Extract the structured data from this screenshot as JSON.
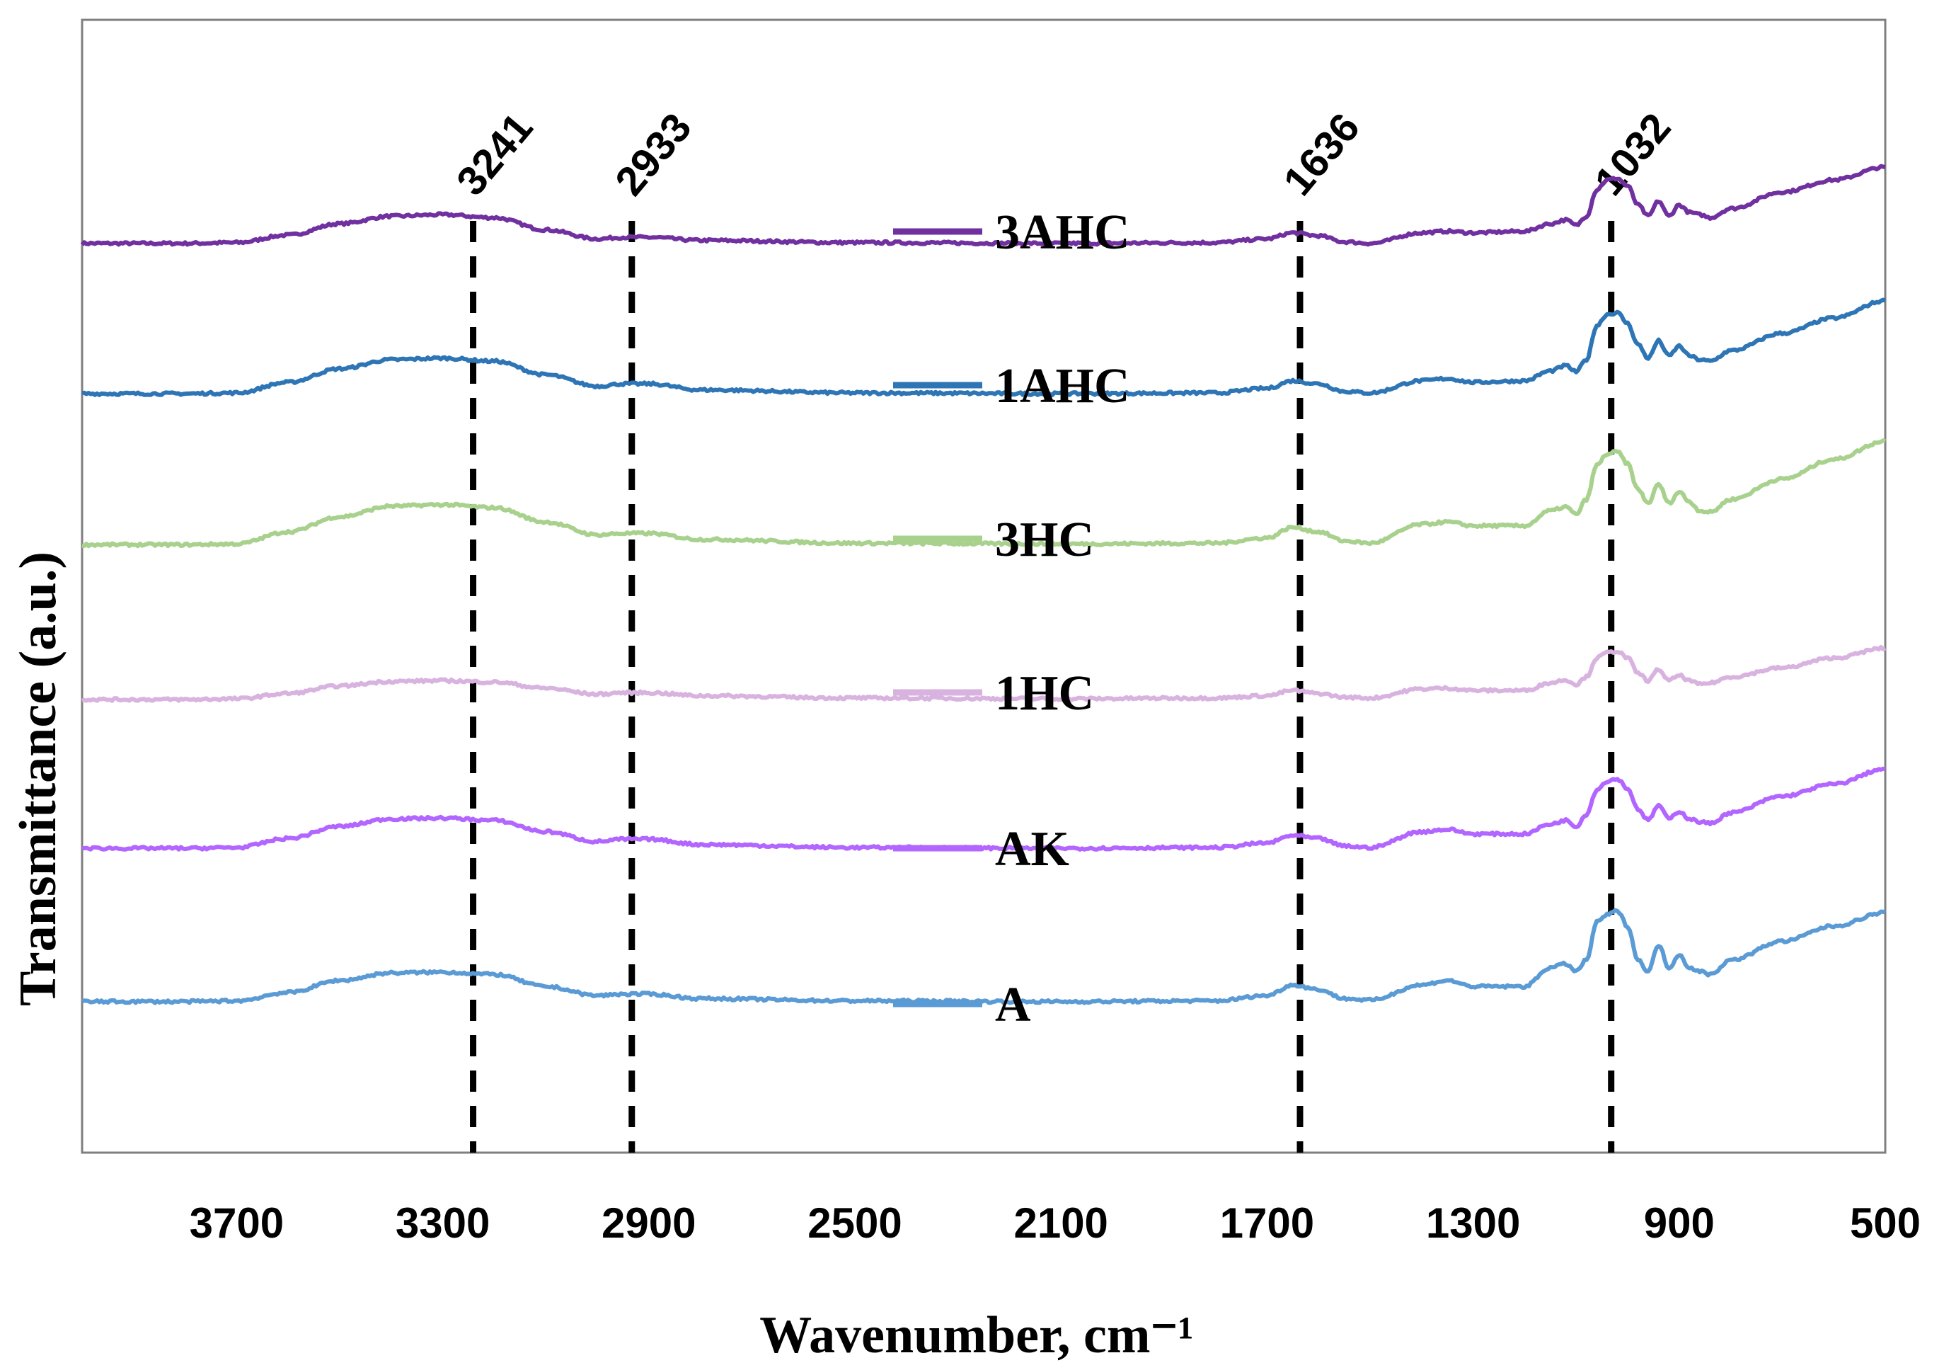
{
  "chart_data": {
    "type": "line",
    "title": "",
    "xlabel": "Wavenumber, cm⁻¹",
    "ylabel": "Transmittance (a.u.)",
    "xlim": [
      4000,
      500
    ],
    "x_reversed": true,
    "ylim": [
      0,
      15
    ],
    "y_ticks_shown": false,
    "x_ticks": [
      3700,
      3300,
      2900,
      2500,
      2100,
      1700,
      1300,
      900,
      500
    ],
    "x_tick_labels": [
      "3700",
      "3300",
      "2900",
      "2500",
      "2100",
      "1700",
      "1300",
      "900",
      "500"
    ],
    "grid": false,
    "legend_position": "center",
    "peak_markers": [
      {
        "x": 3241,
        "label": "3241"
      },
      {
        "x": 2933,
        "label": "2933"
      },
      {
        "x": 1636,
        "label": "1636"
      },
      {
        "x": 1032,
        "label": "1032"
      }
    ],
    "x_samples": [
      4000,
      3900,
      3800,
      3700,
      3600,
      3500,
      3400,
      3300,
      3200,
      3100,
      3000,
      2950,
      2900,
      2800,
      2500,
      2100,
      1800,
      1700,
      1650,
      1600,
      1550,
      1500,
      1400,
      1350,
      1300,
      1200,
      1150,
      1120,
      1100,
      1080,
      1060,
      1040,
      1020,
      1000,
      980,
      960,
      940,
      920,
      900,
      880,
      860,
      840,
      800,
      700,
      600,
      500
    ],
    "series": [
      {
        "name": "3AHC",
        "color": "#7030A0",
        "values": [
          12.04,
          12.04,
          12.04,
          12.05,
          12.15,
          12.3,
          12.4,
          12.42,
          12.38,
          12.22,
          12.1,
          12.12,
          12.12,
          12.08,
          12.05,
          12.04,
          12.05,
          12.1,
          12.18,
          12.14,
          12.06,
          12.04,
          12.18,
          12.2,
          12.18,
          12.2,
          12.3,
          12.35,
          12.28,
          12.4,
          12.75,
          12.88,
          12.9,
          12.8,
          12.55,
          12.4,
          12.6,
          12.4,
          12.55,
          12.45,
          12.42,
          12.38,
          12.5,
          12.72,
          12.88,
          13.05
        ]
      },
      {
        "name": "1AHC",
        "color": "#2E75B6",
        "values": [
          10.05,
          10.05,
          10.05,
          10.06,
          10.2,
          10.38,
          10.5,
          10.52,
          10.48,
          10.3,
          10.15,
          10.18,
          10.18,
          10.1,
          10.06,
          10.05,
          10.06,
          10.12,
          10.22,
          10.18,
          10.08,
          10.06,
          10.22,
          10.25,
          10.2,
          10.22,
          10.35,
          10.42,
          10.34,
          10.5,
          10.95,
          11.1,
          11.12,
          10.98,
          10.7,
          10.52,
          10.75,
          10.55,
          10.68,
          10.55,
          10.5,
          10.48,
          10.62,
          10.85,
          11.05,
          11.28
        ]
      },
      {
        "name": "3HC",
        "color": "#A9D18E",
        "values": [
          8.05,
          8.05,
          8.05,
          8.06,
          8.22,
          8.42,
          8.56,
          8.58,
          8.54,
          8.35,
          8.18,
          8.2,
          8.2,
          8.12,
          8.07,
          8.06,
          8.07,
          8.14,
          8.28,
          8.22,
          8.1,
          8.07,
          8.32,
          8.35,
          8.3,
          8.3,
          8.5,
          8.55,
          8.45,
          8.65,
          9.1,
          9.25,
          9.28,
          9.12,
          8.78,
          8.6,
          8.85,
          8.6,
          8.75,
          8.62,
          8.5,
          8.48,
          8.65,
          8.92,
          9.18,
          9.42
        ]
      },
      {
        "name": "1HC",
        "color": "#D9B3E0",
        "values": [
          6.0,
          6.0,
          6.0,
          6.01,
          6.08,
          6.18,
          6.24,
          6.25,
          6.23,
          6.15,
          6.07,
          6.09,
          6.09,
          6.05,
          6.02,
          6.01,
          6.02,
          6.05,
          6.12,
          6.08,
          6.03,
          6.02,
          6.14,
          6.15,
          6.12,
          6.12,
          6.22,
          6.26,
          6.2,
          6.3,
          6.55,
          6.62,
          6.64,
          6.55,
          6.35,
          6.25,
          6.4,
          6.25,
          6.32,
          6.25,
          6.2,
          6.22,
          6.3,
          6.42,
          6.55,
          6.68
        ]
      },
      {
        "name": "AK",
        "color": "#B266FF",
        "values": [
          4.03,
          4.03,
          4.03,
          4.04,
          4.16,
          4.32,
          4.42,
          4.43,
          4.4,
          4.25,
          4.12,
          4.15,
          4.15,
          4.08,
          4.04,
          4.03,
          4.04,
          4.1,
          4.2,
          4.16,
          4.06,
          4.04,
          4.25,
          4.28,
          4.22,
          4.22,
          4.35,
          4.4,
          4.32,
          4.48,
          4.8,
          4.92,
          4.95,
          4.82,
          4.55,
          4.4,
          4.6,
          4.42,
          4.52,
          4.42,
          4.38,
          4.36,
          4.5,
          4.72,
          4.88,
          5.08
        ]
      },
      {
        "name": "A",
        "color": "#5B9BD5",
        "values": [
          2.0,
          2.0,
          2.0,
          2.01,
          2.12,
          2.28,
          2.38,
          2.39,
          2.36,
          2.2,
          2.08,
          2.1,
          2.1,
          2.04,
          2.01,
          2.0,
          2.01,
          2.08,
          2.22,
          2.16,
          2.04,
          2.02,
          2.22,
          2.28,
          2.2,
          2.2,
          2.45,
          2.5,
          2.4,
          2.55,
          3.05,
          3.15,
          3.2,
          3.0,
          2.55,
          2.4,
          2.75,
          2.45,
          2.62,
          2.45,
          2.4,
          2.36,
          2.55,
          2.8,
          3.0,
          3.18
        ]
      }
    ]
  }
}
